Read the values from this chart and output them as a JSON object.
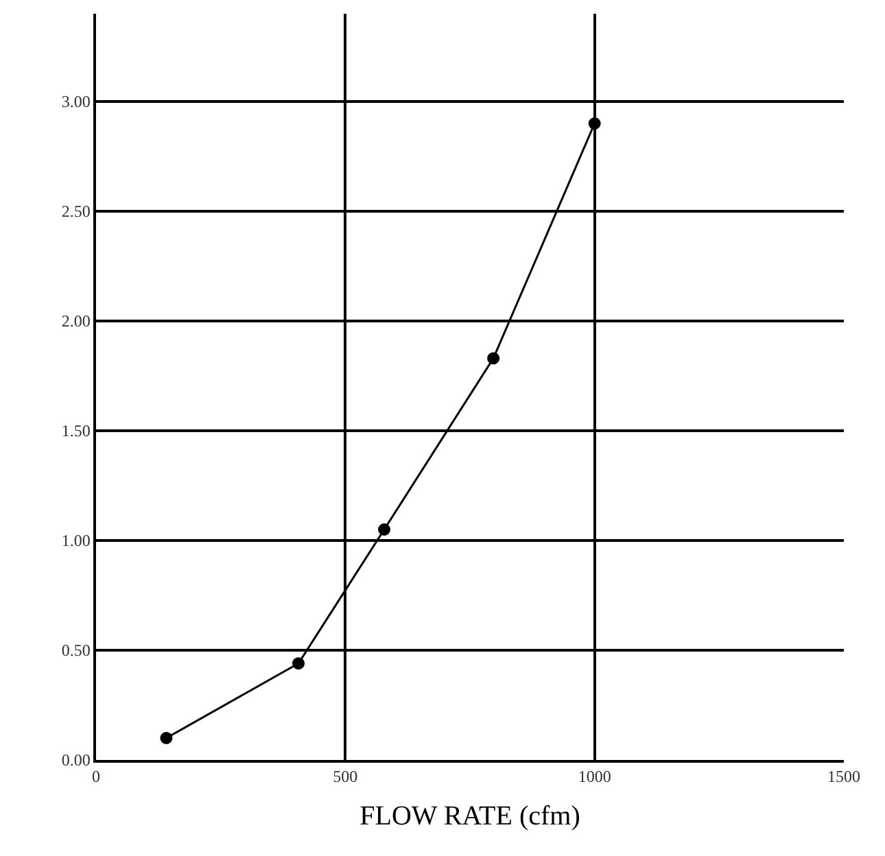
{
  "chart_data": {
    "type": "line",
    "xlabel": "FLOW RATE (cfm)",
    "x": [
      141,
      406,
      578,
      797,
      1000
    ],
    "series": [
      {
        "color": "#000000",
        "values": [
          0.1,
          0.44,
          1.05,
          1.83,
          2.9
        ]
      }
    ],
    "xlim": [
      0,
      1500
    ],
    "xticks": [
      0,
      500,
      1000,
      1500
    ],
    "ylim": [
      0,
      3.4
    ],
    "yticks": [
      {
        "value": 0,
        "label": "0.00"
      },
      {
        "value": 0.5,
        "label": "0.50"
      },
      {
        "value": 1,
        "label": "1.00"
      },
      {
        "value": 1.5,
        "label": "1.50"
      },
      {
        "value": 2,
        "label": "2.00"
      },
      {
        "value": 2.5,
        "label": "2.50"
      },
      {
        "value": 3,
        "label": "3.00"
      }
    ],
    "grid": true,
    "marker": "circle",
    "line_style": "solid",
    "legend": false
  }
}
